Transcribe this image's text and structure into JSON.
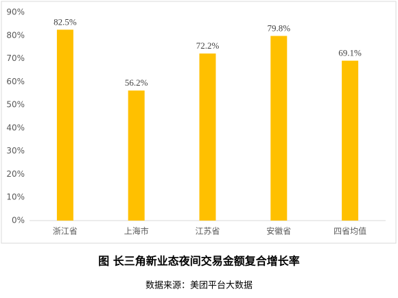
{
  "chart_data": {
    "type": "bar",
    "title": "图  长三角新业态夜间交易金额复合增长率",
    "source": "数据来源：美团平台大数据",
    "categories": [
      "浙江省",
      "上海市",
      "江苏省",
      "安徽省",
      "四省均值"
    ],
    "values": [
      82.5,
      56.2,
      72.2,
      79.8,
      69.1
    ],
    "value_labels": [
      "82.5%",
      "56.2%",
      "72.2%",
      "79.8%",
      "69.1%"
    ],
    "color": "#ffc000",
    "ylim": [
      0,
      90
    ],
    "yticks": [
      {
        "value": 0,
        "label": "0%"
      },
      {
        "value": 10,
        "label": "10%"
      },
      {
        "value": 20,
        "label": "20%"
      },
      {
        "value": 30,
        "label": "30%"
      },
      {
        "value": 40,
        "label": "40%"
      },
      {
        "value": 50,
        "label": "50%"
      },
      {
        "value": 60,
        "label": "60%"
      },
      {
        "value": 70,
        "label": "70%"
      },
      {
        "value": 80,
        "label": "80%"
      },
      {
        "value": 90,
        "label": "90%"
      }
    ],
    "grid": false
  }
}
